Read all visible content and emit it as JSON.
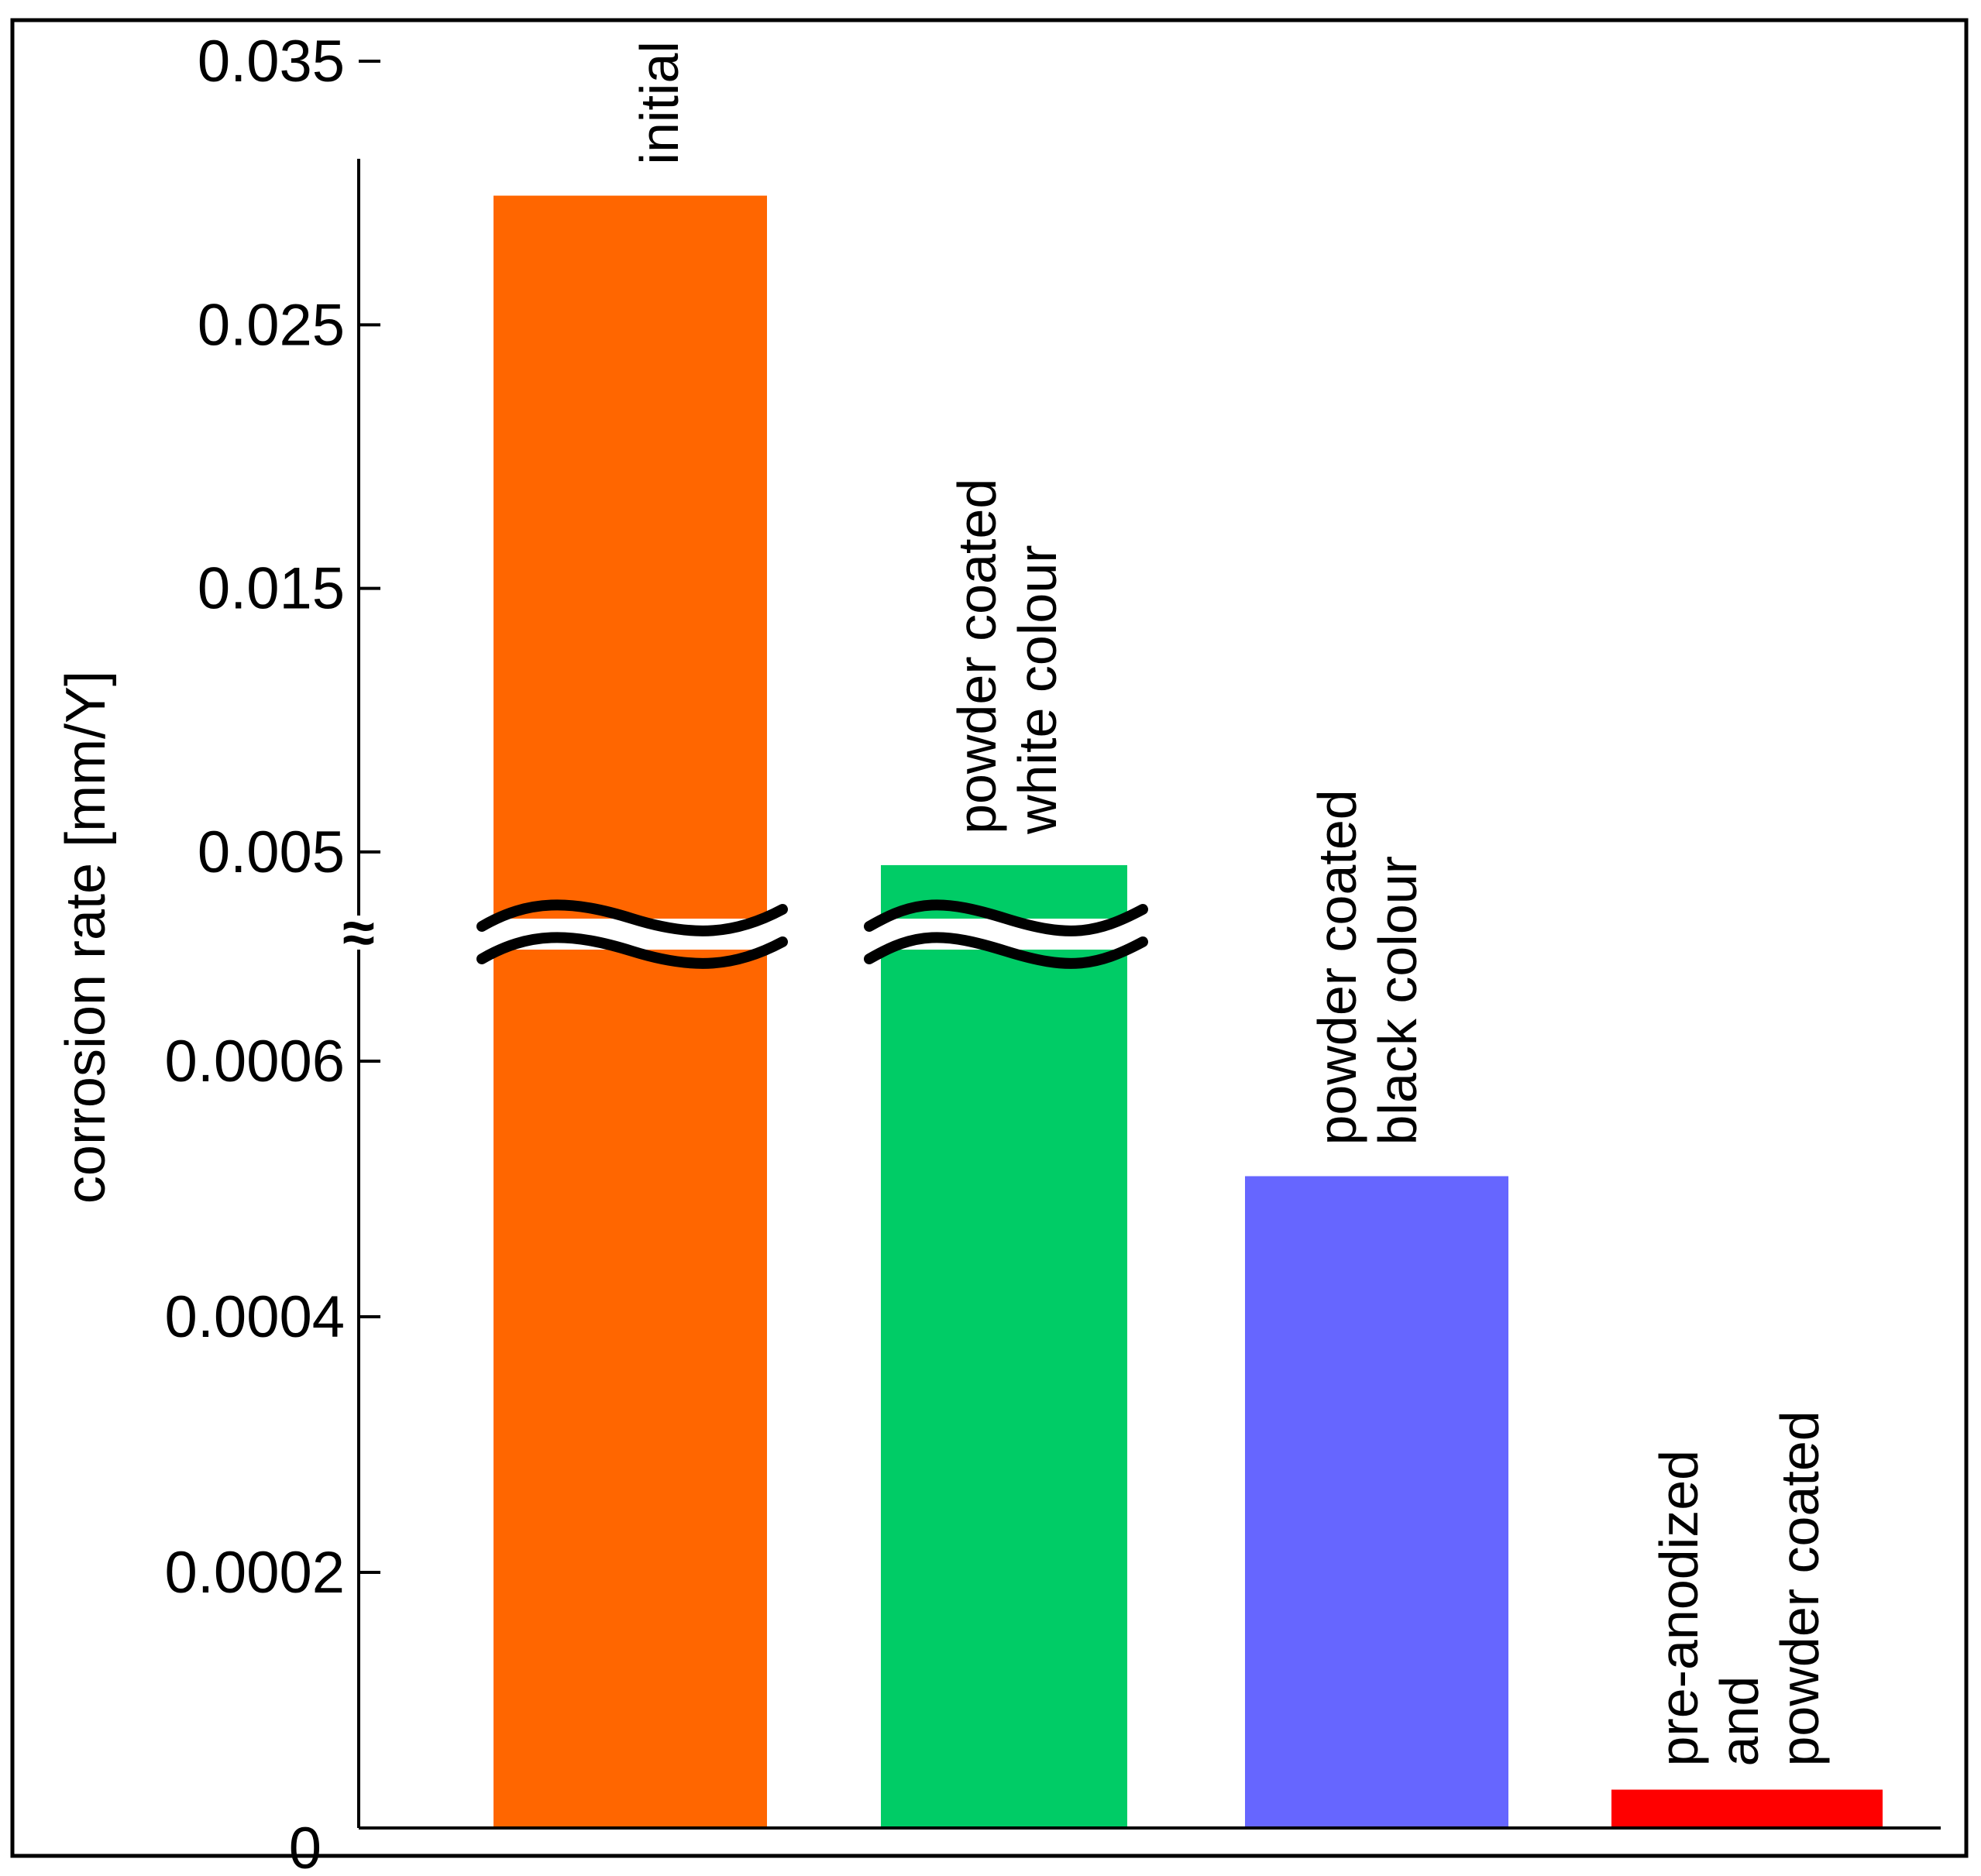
{
  "chart_data": {
    "type": "bar",
    "title": "",
    "xlabel": "",
    "ylabel": "corrosion rate [mm/Y]",
    "axis_break": {
      "symbol": "≈",
      "lower_range": [
        0,
        0.0007
      ],
      "upper_range": [
        0.002,
        0.036
      ]
    },
    "y_ticks_lower": [
      "0",
      "0.0002",
      "0.0004",
      "0.0006"
    ],
    "y_ticks_upper": [
      "0.005",
      "0.015",
      "0.025",
      "0.035"
    ],
    "y_tick_values_lower": [
      0,
      0.0002,
      0.0004,
      0.0006
    ],
    "y_tick_values_upper": [
      0.005,
      0.015,
      0.025,
      0.035
    ],
    "categories": [
      [
        "initial"
      ],
      [
        "powder coated",
        "white colour"
      ],
      [
        "powder coated",
        "black colour"
      ],
      [
        "pre-anodized",
        "and",
        "powder coated"
      ]
    ],
    "values": [
      0.0299,
      0.0045,
      0.00051,
      3e-05
    ],
    "colors": [
      "#ff6600",
      "#00cc66",
      "#6666ff",
      "#ff0000"
    ],
    "broken_bars": [
      0,
      1
    ],
    "grid": false,
    "legend": "none"
  }
}
